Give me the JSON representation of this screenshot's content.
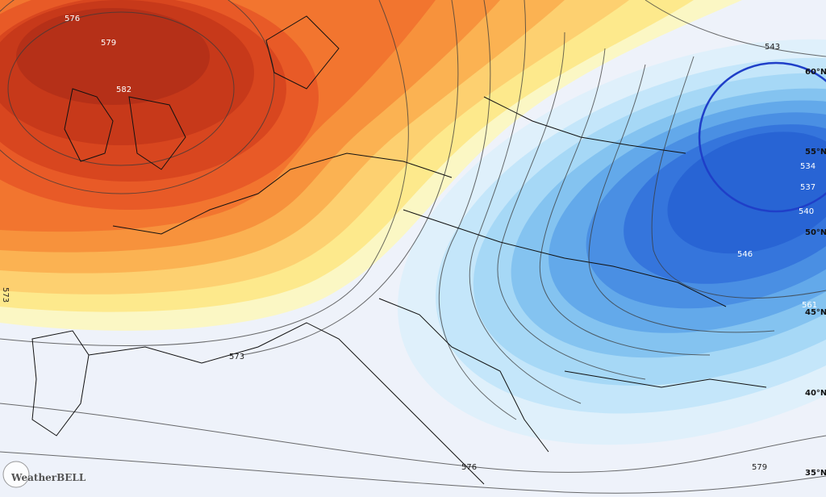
{
  "contour_labels": [
    "576",
    "579",
    "582",
    "573",
    "573",
    "543",
    "546",
    "540",
    "537",
    "534",
    "561",
    "576",
    "579"
  ],
  "latitude_labels": [
    "60°N",
    "55°N",
    "50°N",
    "45°N",
    "40°N",
    "35°N"
  ],
  "logo": "WeatherBELL"
}
